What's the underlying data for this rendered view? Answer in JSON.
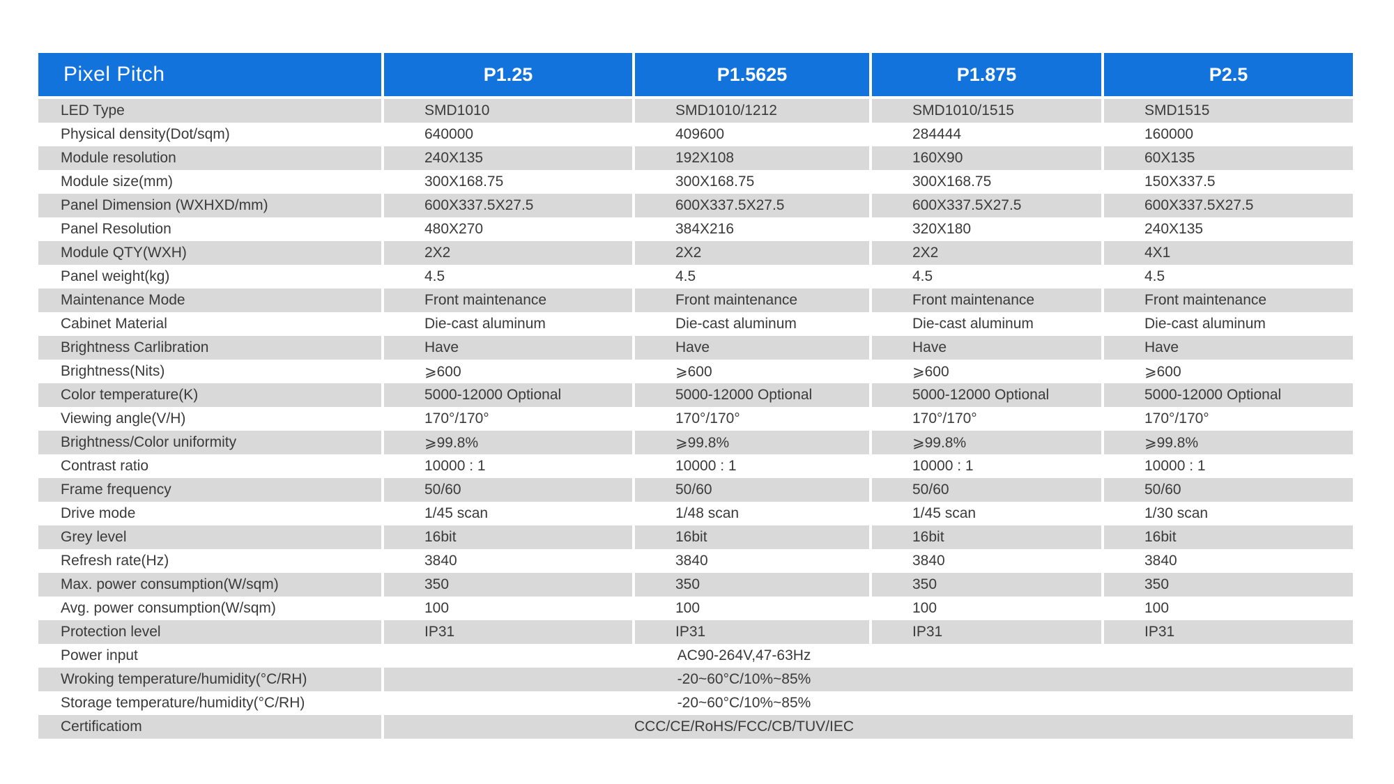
{
  "table": {
    "colors": {
      "header_bg": "#1373DC",
      "header_text": "#FFFFFF",
      "stripe_bg": "#D9D9D9",
      "body_text": "#3A3A3A"
    },
    "header": {
      "corner": "Pixel Pitch",
      "columns": [
        "P1.25",
        "P1.5625",
        "P1.875",
        "P2.5"
      ]
    },
    "rows": [
      {
        "label": "LED Type",
        "values": [
          "SMD1010",
          "SMD1010/1212",
          "SMD1010/1515",
          "SMD1515"
        ]
      },
      {
        "label": "Physical density(Dot/sqm)",
        "values": [
          "640000",
          "409600",
          "284444",
          "160000"
        ]
      },
      {
        "label": "Module resolution",
        "values": [
          "240X135",
          "192X108",
          "160X90",
          "60X135"
        ]
      },
      {
        "label": "Module size(mm)",
        "values": [
          "300X168.75",
          "300X168.75",
          "300X168.75",
          "150X337.5"
        ]
      },
      {
        "label": "Panel Dimension (WXHXD/mm)",
        "values": [
          "600X337.5X27.5",
          "600X337.5X27.5",
          "600X337.5X27.5",
          "600X337.5X27.5"
        ]
      },
      {
        "label": "Panel Resolution",
        "values": [
          "480X270",
          "384X216",
          "320X180",
          "240X135"
        ]
      },
      {
        "label": "Module QTY(WXH)",
        "values": [
          "2X2",
          "2X2",
          "2X2",
          "4X1"
        ]
      },
      {
        "label": "Panel weight(kg)",
        "values": [
          "4.5",
          "4.5",
          "4.5",
          "4.5"
        ]
      },
      {
        "label": "Maintenance Mode",
        "values": [
          "Front maintenance",
          "Front maintenance",
          "Front maintenance",
          "Front maintenance"
        ]
      },
      {
        "label": "Cabinet Material",
        "values": [
          "Die-cast aluminum",
          "Die-cast aluminum",
          "Die-cast aluminum",
          "Die-cast aluminum"
        ]
      },
      {
        "label": "Brightness Carlibration",
        "values": [
          "Have",
          "Have",
          "Have",
          "Have"
        ]
      },
      {
        "label": "Brightness(Nits)",
        "values": [
          "⩾600",
          "⩾600",
          "⩾600",
          "⩾600"
        ]
      },
      {
        "label": "Color temperature(K)",
        "values": [
          "5000-12000 Optional",
          "5000-12000 Optional",
          "5000-12000 Optional",
          "5000-12000 Optional"
        ]
      },
      {
        "label": "Viewing angle(V/H)",
        "values": [
          "170°/170°",
          "170°/170°",
          "170°/170°",
          "170°/170°"
        ]
      },
      {
        "label": "Brightness/Color uniformity",
        "values": [
          "⩾99.8%",
          "⩾99.8%",
          "⩾99.8%",
          "⩾99.8%"
        ]
      },
      {
        "label": "Contrast ratio",
        "values": [
          "10000 : 1",
          "10000 : 1",
          "10000 : 1",
          "10000 : 1"
        ]
      },
      {
        "label": "Frame frequency",
        "values": [
          "50/60",
          "50/60",
          "50/60",
          "50/60"
        ]
      },
      {
        "label": "Drive mode",
        "values": [
          "1/45 scan",
          "1/48 scan",
          "1/45 scan",
          "1/30 scan"
        ]
      },
      {
        "label": "Grey level",
        "values": [
          "16bit",
          "16bit",
          "16bit",
          "16bit"
        ]
      },
      {
        "label": "Refresh rate(Hz)",
        "values": [
          "3840",
          "3840",
          "3840",
          "3840"
        ]
      },
      {
        "label": "Max. power consumption(W/sqm)",
        "values": [
          "350",
          "350",
          "350",
          "350"
        ]
      },
      {
        "label": "Avg. power consumption(W/sqm)",
        "values": [
          "100",
          "100",
          "100",
          "100"
        ]
      },
      {
        "label": "Protection level",
        "values": [
          "IP31",
          "IP31",
          "IP31",
          "IP31"
        ]
      },
      {
        "label": "Power input",
        "merged": "AC90-264V,47-63Hz"
      },
      {
        "label": "Wroking temperature/humidity(°C/RH)",
        "merged": "-20~60°C/10%~85%"
      },
      {
        "label": "Storage temperature/humidity(°C/RH)",
        "merged": "-20~60°C/10%~85%"
      },
      {
        "label": "Certificatiom",
        "merged": "CCC/CE/RoHS/FCC/CB/TUV/IEC"
      }
    ]
  }
}
